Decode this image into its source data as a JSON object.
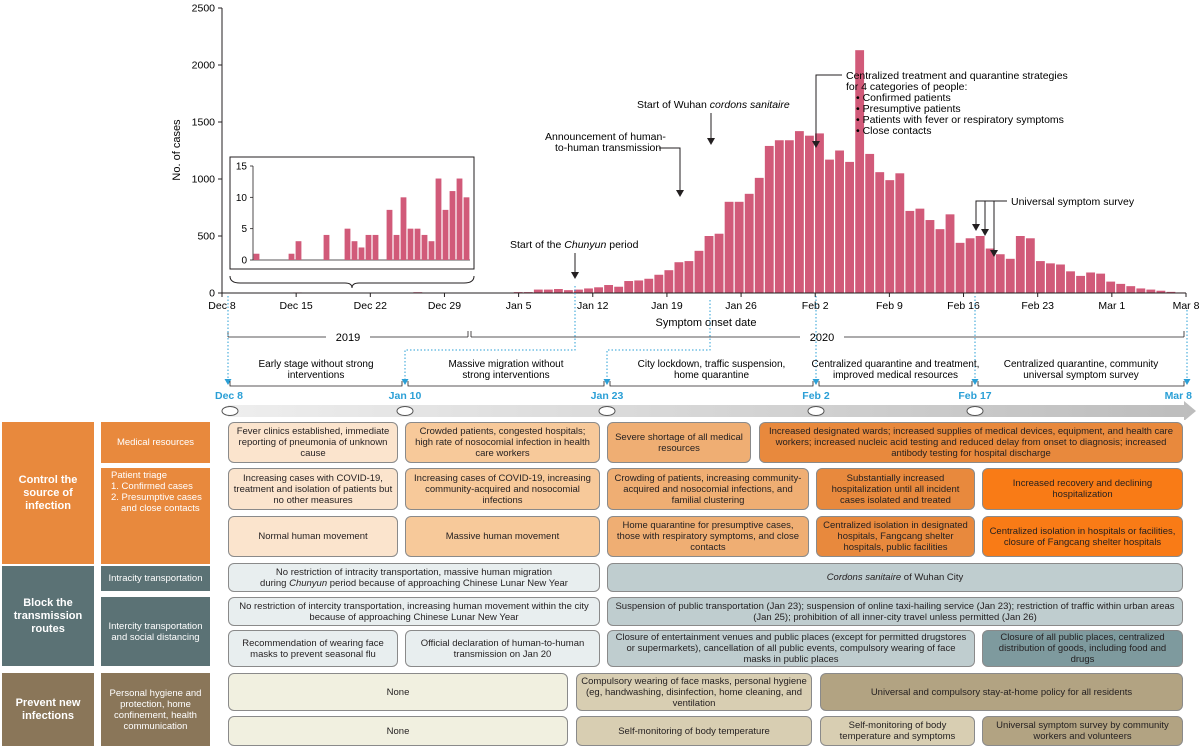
{
  "colors": {
    "bar": "#d15a79",
    "orange_dark": "#e8893d",
    "orange_light": "#fbe4cd",
    "orange_mid": "#f7c99a",
    "orange_tan": "#efae73",
    "orange_bright": "#f97b16",
    "slate_dark": "#5b7275",
    "slate_light": "#e8eeef",
    "slate_mid": "#bfcdcf",
    "slate_teal": "#7e9a9e",
    "brown_dark": "#8a7659",
    "brown_light": "#f1f0e0",
    "brown_mid": "#d8ceb2",
    "brown_tan": "#b2a382",
    "marker": "#2a9fd6"
  },
  "chart_data": {
    "type": "bar",
    "ylabel": "No. of cases",
    "xlabel": "Symptom onset date",
    "ylim": [
      0,
      2500
    ],
    "yticks": [
      0,
      500,
      1000,
      1500,
      2000,
      2500
    ],
    "xticks": [
      "Dec 8",
      "Dec 15",
      "Dec 22",
      "Dec 29",
      "Jan 5",
      "Jan 12",
      "Jan 19",
      "Jan 26",
      "Feb 2",
      "Feb 9",
      "Feb 16",
      "Feb 23",
      "Mar 1",
      "Mar 8"
    ],
    "values": [
      0,
      2,
      0,
      0,
      0,
      0,
      2,
      5,
      0,
      0,
      0,
      0,
      3,
      0,
      0,
      0,
      4,
      2,
      2,
      7,
      0,
      0,
      0,
      0,
      2,
      1,
      2,
      0,
      4,
      8,
      8,
      30,
      30,
      35,
      25,
      30,
      40,
      50,
      70,
      55,
      105,
      110,
      125,
      160,
      200,
      270,
      280,
      370,
      500,
      520,
      800,
      800,
      870,
      1010,
      1290,
      1340,
      1340,
      1420,
      1380,
      1400,
      1170,
      1250,
      1150,
      2130,
      1220,
      1060,
      990,
      1050,
      720,
      740,
      640,
      560,
      690,
      440,
      480,
      500,
      390,
      340,
      300,
      500,
      480,
      280,
      260,
      250,
      190,
      150,
      180,
      170,
      100,
      80,
      60,
      40,
      30,
      20,
      10,
      5
    ],
    "inset": {
      "ylim": [
        0,
        15
      ],
      "yticks": [
        0,
        5,
        10,
        15
      ],
      "values": [
        1,
        0,
        0,
        0,
        0,
        1,
        3,
        0,
        0,
        0,
        4,
        0,
        0,
        5,
        3,
        2,
        4,
        4,
        0,
        8,
        4,
        10,
        5,
        5,
        4,
        3,
        13,
        8,
        11,
        13,
        10
      ]
    },
    "annotations": {
      "chunyun": [
        "Start of the ",
        "Chunyun",
        " period"
      ],
      "h2h": [
        "Announcement of human-",
        "to-human transmission"
      ],
      "cordon": [
        "Start of Wuhan ",
        "cordons sanitaire"
      ],
      "centralized_title": [
        "Centralized treatment and quarantine strategies",
        "for 4 categories of people:"
      ],
      "centralized_bullets": [
        "Confirmed patients",
        "Presumptive patients",
        "Patients with fever or respiratory symptoms",
        "Close contacts"
      ],
      "survey": "Universal symptom survey"
    },
    "years": [
      "2019",
      "2020"
    ]
  },
  "timeline": {
    "dates": [
      "Dec 8",
      "Jan 10",
      "Jan 23",
      "Feb 2",
      "Feb 17",
      "Mar 8"
    ],
    "periods": [
      [
        "Early stage without strong",
        "interventions"
      ],
      [
        "Massive migration without",
        "strong interventions"
      ],
      [
        "City lockdown, traffic suspension,",
        "home quarantine"
      ],
      [
        "Centralized quarantine and treatment,",
        "improved medical resources"
      ],
      [
        "Centralized quarantine, community",
        "universal symptom survey"
      ]
    ]
  },
  "categories": {
    "control": "Control the source of infection",
    "block": "Block the transmission routes",
    "prevent": "Prevent new infections"
  },
  "subcats": {
    "medical": "Medical resources",
    "triage_title": "Patient triage",
    "triage_items": [
      "1. Confirmed cases",
      "2. Presumptive cases",
      "    and close contacts"
    ],
    "intracity": "Intracity transportation",
    "intercity": "Intercity transportation and social distancing",
    "hygiene": "Personal hygiene and protection, home confinement, health communication"
  },
  "cells": {
    "med1": "Fever clinics established, immediate reporting of pneumonia of unknown cause",
    "med2": "Crowded patients, congested hospitals; high rate of nosocomial infection in health care workers",
    "med3": "Severe shortage of all medical resources",
    "med4": "Increased designated wards; increased supplies of medical devices, equipment, and health care workers; increased nucleic acid testing and reduced delay from onset to diagnosis; increased antibody testing for hospital discharge",
    "tri1a": "Increasing cases with COVID-19, treatment and isolation of patients but no other measures",
    "tri2a": "Increasing cases of COVID-19, increasing community-acquired and nosocomial infections",
    "tri3a": "Crowding of patients, increasing community-acquired and nosocomial infections, and familial clustering",
    "tri4a": "Substantially increased hospitalization until all incident cases isolated and treated",
    "tri5a": "Increased recovery and declining hospitalization",
    "tri1b": "Normal human movement",
    "tri2b": "Massive human movement",
    "tri3b": "Home quarantine for presumptive cases, those with respiratory symptoms, and close contacts",
    "tri4b": "Centralized isolation in designated hospitals, Fangcang shelter hospitals, public facilities",
    "tri5b": "Centralized isolation in hospitals or facilities, closure of Fangcang shelter hospitals",
    "intra1_a": "No restriction of intracity transportation, massive human migration",
    "intra1_b1": "during ",
    "intra1_b2": "Chunyun",
    "intra1_b3": " period because of approaching Chinese Lunar New Year",
    "intra2_a": "Cordons sanitaire",
    "intra2_b": " of Wuhan City",
    "inter1": "No restriction of intercity transportation, increasing human movement within the city because of approaching Chinese Lunar New Year",
    "inter2": "Suspension of public transportation (Jan 23); suspension of online taxi-hailing service (Jan 23); restriction of traffic within urban areas (Jan 25); prohibition of all inner-city travel unless permitted (Jan 26)",
    "sd1": "Recommendation of wearing face masks to prevent seasonal flu",
    "sd2": "Official declaration of human-to-human transmission on Jan 20",
    "sd3": "Closure of entertainment venues and public places (except for permitted drugstores or supermarkets), cancellation of all public events, compulsory wearing of face masks in public places",
    "sd4": "Closure of all public places, centralized distribution of goods, including food and drugs",
    "hyg1": "None",
    "hyg2": "Compulsory wearing of face masks, personal hygiene (eg, handwashing, disinfection, home cleaning, and ventilation",
    "hyg3": "Universal and compulsory stay-at-home policy for all residents",
    "hyg4": "None",
    "hyg5": "Self-monitoring of body temperature",
    "hyg6": "Self-monitoring of body temperature and symptoms",
    "hyg7": "Universal symptom survey by community workers and volunteers"
  }
}
